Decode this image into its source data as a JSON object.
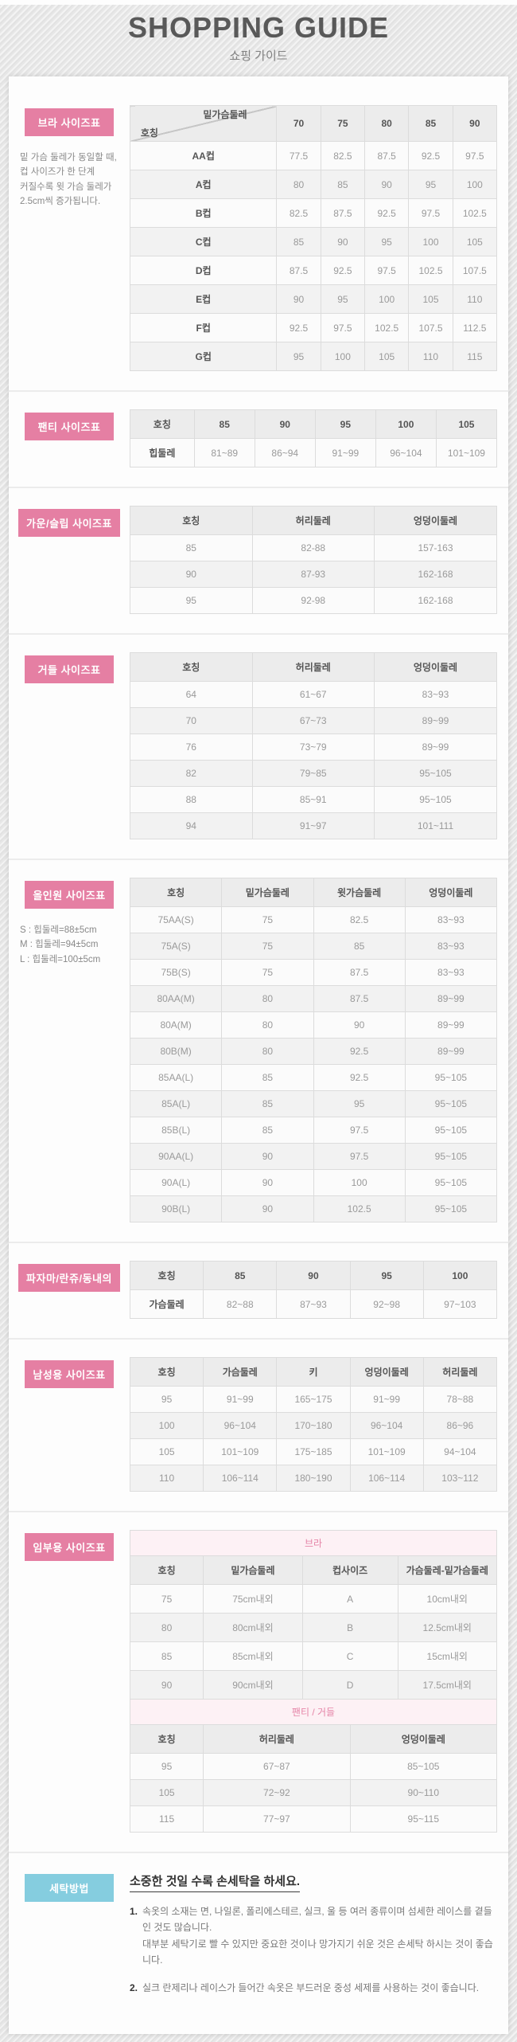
{
  "header": {
    "title": "SHOPPING GUIDE",
    "subtitle": "쇼핑 가이드"
  },
  "colors": {
    "accent_pink": "#e57fa3",
    "accent_blue": "#85cddf",
    "band_bg": "#fdf1f5"
  },
  "sections": {
    "bra": {
      "label": "브라 사이즈표",
      "notes": [
        "밑 가슴 둘레가 동일할 때,",
        "컵 사이즈가 한 단계",
        "커질수록 윗 가슴 둘레가",
        "2.5cm씩 증가됩니다."
      ],
      "table": [
        [
          {
            "d1": "밑가슴둘레",
            "d2": "호칭"
          },
          {
            "t": "70",
            "h": 1
          },
          {
            "t": "75",
            "h": 1
          },
          {
            "t": "80",
            "h": 1
          },
          {
            "t": "85",
            "h": 1
          },
          {
            "t": "90",
            "h": 1
          }
        ],
        [
          {
            "t": "AA컵",
            "n": 1
          },
          "77.5",
          "82.5",
          "87.5",
          "92.5",
          "97.5"
        ],
        [
          {
            "t": "A컵",
            "n": 1
          },
          "80",
          "85",
          "90",
          "95",
          "100"
        ],
        [
          {
            "t": "B컵",
            "n": 1
          },
          "82.5",
          "87.5",
          "92.5",
          "97.5",
          "102.5"
        ],
        [
          {
            "t": "C컵",
            "n": 1
          },
          "85",
          "90",
          "95",
          "100",
          "105"
        ],
        [
          {
            "t": "D컵",
            "n": 1
          },
          "87.5",
          "92.5",
          "97.5",
          "102.5",
          "107.5"
        ],
        [
          {
            "t": "E컵",
            "n": 1
          },
          "90",
          "95",
          "100",
          "105",
          "110"
        ],
        [
          {
            "t": "F컵",
            "n": 1
          },
          "92.5",
          "97.5",
          "102.5",
          "107.5",
          "112.5"
        ],
        [
          {
            "t": "G컵",
            "n": 1
          },
          "95",
          "100",
          "105",
          "110",
          "115"
        ]
      ]
    },
    "panty": {
      "label": "팬티 사이즈표",
      "table": [
        [
          {
            "t": "호칭",
            "h": 1
          },
          {
            "t": "85",
            "h": 1
          },
          {
            "t": "90",
            "h": 1
          },
          {
            "t": "95",
            "h": 1
          },
          {
            "t": "100",
            "h": 1
          },
          {
            "t": "105",
            "h": 1
          }
        ],
        [
          {
            "t": "힙둘레",
            "n": 1
          },
          "81~89",
          "86~94",
          "91~99",
          "96~104",
          "101~109"
        ]
      ]
    },
    "gown": {
      "label": "가운/슬립 사이즈표",
      "table": [
        [
          {
            "t": "호칭",
            "h": 1
          },
          {
            "t": "허리둘레",
            "h": 1
          },
          {
            "t": "엉덩이둘레",
            "h": 1
          }
        ],
        [
          "85",
          "82-88",
          "157-163"
        ],
        [
          "90",
          "87-93",
          "162-168"
        ],
        [
          "95",
          "92-98",
          "162-168"
        ]
      ]
    },
    "girdle": {
      "label": "거들 사이즈표",
      "table": [
        [
          {
            "t": "호칭",
            "h": 1
          },
          {
            "t": "허리둘레",
            "h": 1
          },
          {
            "t": "엉덩이둘레",
            "h": 1
          }
        ],
        [
          "64",
          "61~67",
          "83~93"
        ],
        [
          "70",
          "67~73",
          "89~99"
        ],
        [
          "76",
          "73~79",
          "89~99"
        ],
        [
          "82",
          "79~85",
          "95~105"
        ],
        [
          "88",
          "85~91",
          "95~105"
        ],
        [
          "94",
          "91~97",
          "101~111"
        ]
      ]
    },
    "allinone": {
      "label": "올인원 사이즈표",
      "notes": [
        "S : 힙둘레=88±5cm",
        "M : 힙둘레=94±5cm",
        "L : 힙둘레=100±5cm"
      ],
      "table": [
        [
          {
            "t": "호칭",
            "h": 1
          },
          {
            "t": "밑가슴둘레",
            "h": 1
          },
          {
            "t": "윗가슴둘레",
            "h": 1
          },
          {
            "t": "엉덩이둘레",
            "h": 1
          }
        ],
        [
          "75AA(S)",
          "75",
          "82.5",
          "83~93"
        ],
        [
          "75A(S)",
          "75",
          "85",
          "83~93"
        ],
        [
          "75B(S)",
          "75",
          "87.5",
          "83~93"
        ],
        [
          "80AA(M)",
          "80",
          "87.5",
          "89~99"
        ],
        [
          "80A(M)",
          "80",
          "90",
          "89~99"
        ],
        [
          "80B(M)",
          "80",
          "92.5",
          "89~99"
        ],
        [
          "85AA(L)",
          "85",
          "92.5",
          "95~105"
        ],
        [
          "85A(L)",
          "85",
          "95",
          "95~105"
        ],
        [
          "85B(L)",
          "85",
          "97.5",
          "95~105"
        ],
        [
          "90AA(L)",
          "90",
          "97.5",
          "95~105"
        ],
        [
          "90A(L)",
          "90",
          "100",
          "95~105"
        ],
        [
          "90B(L)",
          "90",
          "102.5",
          "95~105"
        ]
      ]
    },
    "pajama": {
      "label": "파자마/란쥬/동내의",
      "table": [
        [
          {
            "t": "호칭",
            "h": 1
          },
          {
            "t": "85",
            "h": 1
          },
          {
            "t": "90",
            "h": 1
          },
          {
            "t": "95",
            "h": 1
          },
          {
            "t": "100",
            "h": 1
          }
        ],
        [
          {
            "t": "가슴둘레",
            "n": 1
          },
          "82~88",
          "87~93",
          "92~98",
          "97~103"
        ]
      ]
    },
    "mens": {
      "label": "남성용 사이즈표",
      "table": [
        [
          {
            "t": "호칭",
            "h": 1
          },
          {
            "t": "가슴둘레",
            "h": 1
          },
          {
            "t": "키",
            "h": 1
          },
          {
            "t": "엉덩이둘레",
            "h": 1
          },
          {
            "t": "허리둘레",
            "h": 1
          }
        ],
        [
          "95",
          "91~99",
          "165~175",
          "91~99",
          "78~88"
        ],
        [
          "100",
          "96~104",
          "170~180",
          "96~104",
          "86~96"
        ],
        [
          "105",
          "101~109",
          "175~185",
          "101~109",
          "94~104"
        ],
        [
          "110",
          "106~114",
          "180~190",
          "106~114",
          "103~112"
        ]
      ]
    },
    "maternity": {
      "label": "임부용 사이즈표",
      "bra_table": [
        [
          {
            "t": "브라",
            "b": 1,
            "s": 4
          }
        ],
        [
          {
            "t": "호칭",
            "h": 1
          },
          {
            "t": "밑가슴둘레",
            "h": 1
          },
          {
            "t": "컵사이즈",
            "h": 1
          },
          {
            "t": "가슴둘레-밑가슴둘레",
            "h": 1
          }
        ],
        [
          "75",
          "75cm내외",
          "A",
          "10cm내외"
        ],
        [
          "80",
          "80cm내외",
          "B",
          "12.5cm내외"
        ],
        [
          "85",
          "85cm내외",
          "C",
          "15cm내외"
        ],
        [
          "90",
          "90cm내외",
          "D",
          "17.5cm내외"
        ]
      ],
      "panty_table": [
        [
          {
            "t": "팬티 / 거들",
            "b": 1,
            "s": 3
          }
        ],
        [
          {
            "t": "호칭",
            "h": 1
          },
          {
            "t": "허리둘레",
            "h": 1
          },
          {
            "t": "엉덩이둘레",
            "h": 1
          }
        ],
        [
          "95",
          "67~87",
          "85~105"
        ],
        [
          "105",
          "72~92",
          "90~110"
        ],
        [
          "115",
          "77~97",
          "95~115"
        ]
      ]
    },
    "washing": {
      "label": "세탁방법",
      "title": "소중한 것일 수록 손세탁을 하세요.",
      "items": [
        {
          "num": "1.",
          "lines": [
            "속옷의 소재는 면, 나일론, 폴리에스테르, 실크, 울 등 여러 종류이며 섬세한 레이스를 곁들인 것도 많습니다.",
            "대부분 세탁기로 빨 수 있지만 중요한 것이나 망가지기 쉬운 것은 손세탁 하시는 것이 좋습니다."
          ]
        },
        {
          "num": "2.",
          "lines": [
            "실크 란제리나 레이스가 들어간 속옷은 부드러운 중성 세제를 사용하는 것이 좋습니다."
          ]
        }
      ]
    }
  }
}
